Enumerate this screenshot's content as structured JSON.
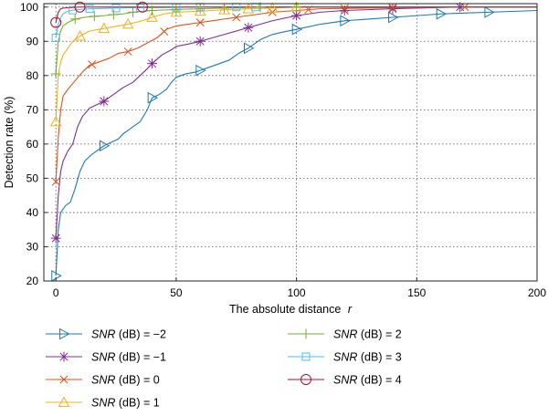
{
  "chart_data": {
    "type": "line",
    "xlabel": "The absolute distance",
    "xlabel_var": "r",
    "ylabel": "Detection rate (%)",
    "xlim": [
      -5,
      200
    ],
    "ylim": [
      20,
      101
    ],
    "xticks": [
      0,
      50,
      100,
      150,
      200
    ],
    "yticks": [
      20,
      30,
      40,
      50,
      60,
      70,
      80,
      90,
      100
    ],
    "grid": true,
    "legend_position": "bottom",
    "series": [
      {
        "name": "= −2",
        "label_prefix": "SNR",
        "label_unit": " (dB) ",
        "label_value": "= −2",
        "color": "#1f77b4",
        "marker": "triangle-right",
        "markers_x": [
          0,
          20,
          40,
          60,
          80,
          100,
          120,
          140,
          160,
          180
        ],
        "x": [
          0,
          1,
          2,
          4,
          6,
          8,
          10,
          12,
          15,
          18,
          20,
          23,
          26,
          28,
          30,
          32,
          35,
          38,
          40,
          43,
          46,
          48,
          50,
          54,
          58,
          60,
          64,
          68,
          72,
          76,
          80,
          85,
          90,
          95,
          100,
          110,
          120,
          130,
          140,
          160,
          180,
          200
        ],
        "y": [
          21.5,
          35,
          40,
          42,
          43,
          47,
          52,
          55,
          57,
          58.5,
          59.5,
          60.5,
          61.5,
          63,
          64,
          65,
          66.5,
          70,
          73.5,
          74.5,
          76,
          78,
          79.5,
          80.5,
          81,
          81.5,
          82.5,
          83.5,
          84.5,
          86.5,
          88,
          90.5,
          92,
          92.8,
          93.5,
          95,
          96,
          96.5,
          97,
          98,
          98.5,
          99
        ]
      },
      {
        "name": "= −1",
        "label_prefix": "SNR",
        "label_unit": " (dB) ",
        "label_value": "= −1",
        "color": "#7e2f8e",
        "marker": "asterisk",
        "markers_x": [
          0,
          20,
          40,
          60,
          80,
          100,
          120,
          140,
          168
        ],
        "x": [
          0,
          1,
          2,
          3,
          5,
          7,
          9,
          11,
          14,
          17,
          20,
          24,
          28,
          32,
          35,
          38,
          40,
          44,
          48,
          50,
          55,
          60,
          65,
          70,
          75,
          80,
          85,
          90,
          100,
          110,
          120,
          140,
          168,
          200
        ],
        "y": [
          32.5,
          45,
          52,
          55,
          58,
          60,
          65,
          68,
          70.5,
          71.5,
          72.5,
          74.5,
          76.5,
          78,
          80,
          82,
          83.5,
          86,
          87.5,
          88.5,
          89.2,
          90,
          91,
          92,
          93,
          94,
          95,
          96,
          97.5,
          98.5,
          99,
          99.5,
          100,
          100
        ]
      },
      {
        "name": "= 0",
        "label_prefix": "SNR",
        "label_unit": " (dB) ",
        "label_value": "= 0",
        "color": "#d95319",
        "marker": "x",
        "markers_x": [
          0,
          15,
          30,
          45,
          60,
          75,
          90,
          105,
          120,
          140,
          170
        ],
        "x": [
          0,
          1,
          2,
          3,
          5,
          8,
          11,
          14,
          18,
          22,
          26,
          30,
          34,
          38,
          42,
          46,
          50,
          55,
          60,
          65,
          70,
          75,
          80,
          90,
          100,
          110,
          120,
          140,
          170,
          200
        ],
        "y": [
          49,
          62,
          70,
          74,
          76,
          78.5,
          81,
          83,
          84,
          85,
          86.5,
          87,
          88,
          89.5,
          91,
          93.5,
          94.5,
          95,
          95.5,
          96,
          96.5,
          97,
          97.5,
          98.5,
          99,
          99.5,
          99.6,
          99.8,
          100,
          100
        ]
      },
      {
        "name": "= 1",
        "label_prefix": "SNR",
        "label_unit": " (dB) ",
        "label_value": "= 1",
        "color": "#edb120",
        "marker": "triangle-up",
        "markers_x": [
          0,
          10,
          20,
          30,
          40,
          50,
          60,
          70,
          80,
          90,
          100
        ],
        "x": [
          0,
          1,
          2,
          3,
          5,
          7,
          10,
          14,
          18,
          22,
          26,
          30,
          35,
          40,
          45,
          50,
          60,
          70,
          80,
          90,
          100,
          120,
          200
        ],
        "y": [
          66.5,
          80,
          84,
          86,
          88,
          90,
          91.5,
          93,
          93.5,
          94,
          94.5,
          95,
          95.8,
          97,
          98,
          98.5,
          98.8,
          99.2,
          99.5,
          99.7,
          100,
          100,
          100
        ]
      },
      {
        "name": "= 2",
        "label_prefix": "SNR",
        "label_unit": " (dB) ",
        "label_value": "= 2",
        "color": "#77ac30",
        "marker": "plus",
        "markers_x": [
          0,
          8,
          16,
          24,
          32,
          40,
          50,
          60,
          70,
          85,
          100
        ],
        "x": [
          0,
          1,
          2,
          3,
          5,
          8,
          12,
          16,
          20,
          24,
          28,
          32,
          40,
          50,
          60,
          70,
          85,
          100,
          200
        ],
        "y": [
          80.5,
          90,
          93,
          94.5,
          95.5,
          96.5,
          97,
          97.3,
          97.5,
          97.8,
          98,
          98.5,
          99,
          99.3,
          99.5,
          99.7,
          100,
          100,
          100
        ]
      },
      {
        "name": "= 3",
        "label_prefix": "SNR",
        "label_unit": " (dB) ",
        "label_value": "= 3",
        "color": "#4dbeee",
        "marker": "square",
        "markers_x": [
          0,
          7,
          14,
          25,
          35,
          50,
          60,
          75,
          83
        ],
        "x": [
          0,
          1,
          2,
          3,
          5,
          7,
          10,
          14,
          20,
          25,
          30,
          35,
          50,
          60,
          75,
          83,
          100,
          200
        ],
        "y": [
          91,
          95,
          97,
          98,
          98.8,
          99.1,
          99.3,
          99.5,
          99.6,
          99.7,
          99.8,
          99.8,
          99.9,
          100,
          100,
          100,
          100,
          100
        ]
      },
      {
        "name": "= 4",
        "label_prefix": "SNR",
        "label_unit": " (dB) ",
        "label_value": "= 4",
        "color": "#a2142f",
        "marker": "circle",
        "markers_x": [
          0,
          10,
          36
        ],
        "x": [
          0,
          1,
          2,
          3,
          5,
          10,
          20,
          36,
          60,
          100,
          150,
          200
        ],
        "y": [
          95.5,
          98.5,
          99.5,
          99.7,
          99.8,
          100,
          100,
          100,
          100,
          100,
          100,
          100
        ]
      }
    ]
  }
}
